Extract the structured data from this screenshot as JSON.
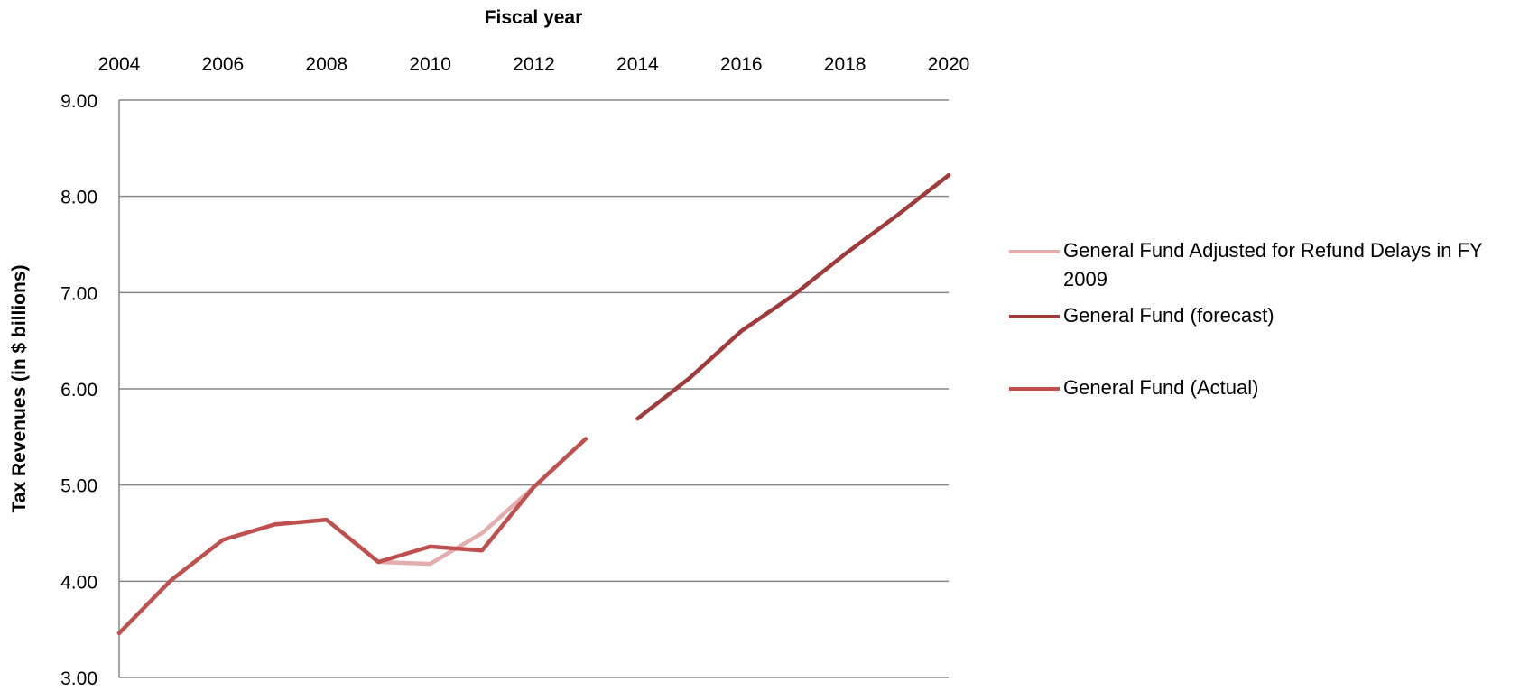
{
  "chart_data": {
    "type": "line",
    "xlabel": "Fiscal year",
    "ylabel": "Tax Revenues (in $ billions)",
    "x_ticks": [
      "2004",
      "2006",
      "2008",
      "2010",
      "2012",
      "2014",
      "2016",
      "2018",
      "2020"
    ],
    "y_ticks": [
      "9.00",
      "8.00",
      "7.00",
      "6.00",
      "5.00",
      "4.00",
      "3.00"
    ],
    "xlim": [
      2004,
      2020
    ],
    "ylim": [
      3,
      9
    ],
    "grid": true,
    "x_axis_position": "top",
    "legend_position": "right",
    "series": [
      {
        "name": "General Fund Adjusted for Refund Delays in FY 2009",
        "color": "#e4acac",
        "x": [
          2009,
          2010,
          2011,
          2012
        ],
        "y": [
          4.2,
          4.18,
          4.5,
          4.98
        ]
      },
      {
        "name": "General Fund (forecast)",
        "color": "#a13b3b",
        "x": [
          2014,
          2015,
          2016,
          2017,
          2018,
          2019,
          2020
        ],
        "y": [
          5.69,
          6.11,
          6.6,
          6.97,
          7.4,
          7.8,
          8.22
        ]
      },
      {
        "name": "General Fund (Actual)",
        "color": "#c0504d",
        "x": [
          2004,
          2005,
          2006,
          2007,
          2008,
          2009,
          2010,
          2011,
          2012,
          2013
        ],
        "y": [
          3.46,
          4.01,
          4.43,
          4.59,
          4.64,
          4.2,
          4.36,
          4.32,
          4.98,
          5.48
        ]
      }
    ]
  }
}
